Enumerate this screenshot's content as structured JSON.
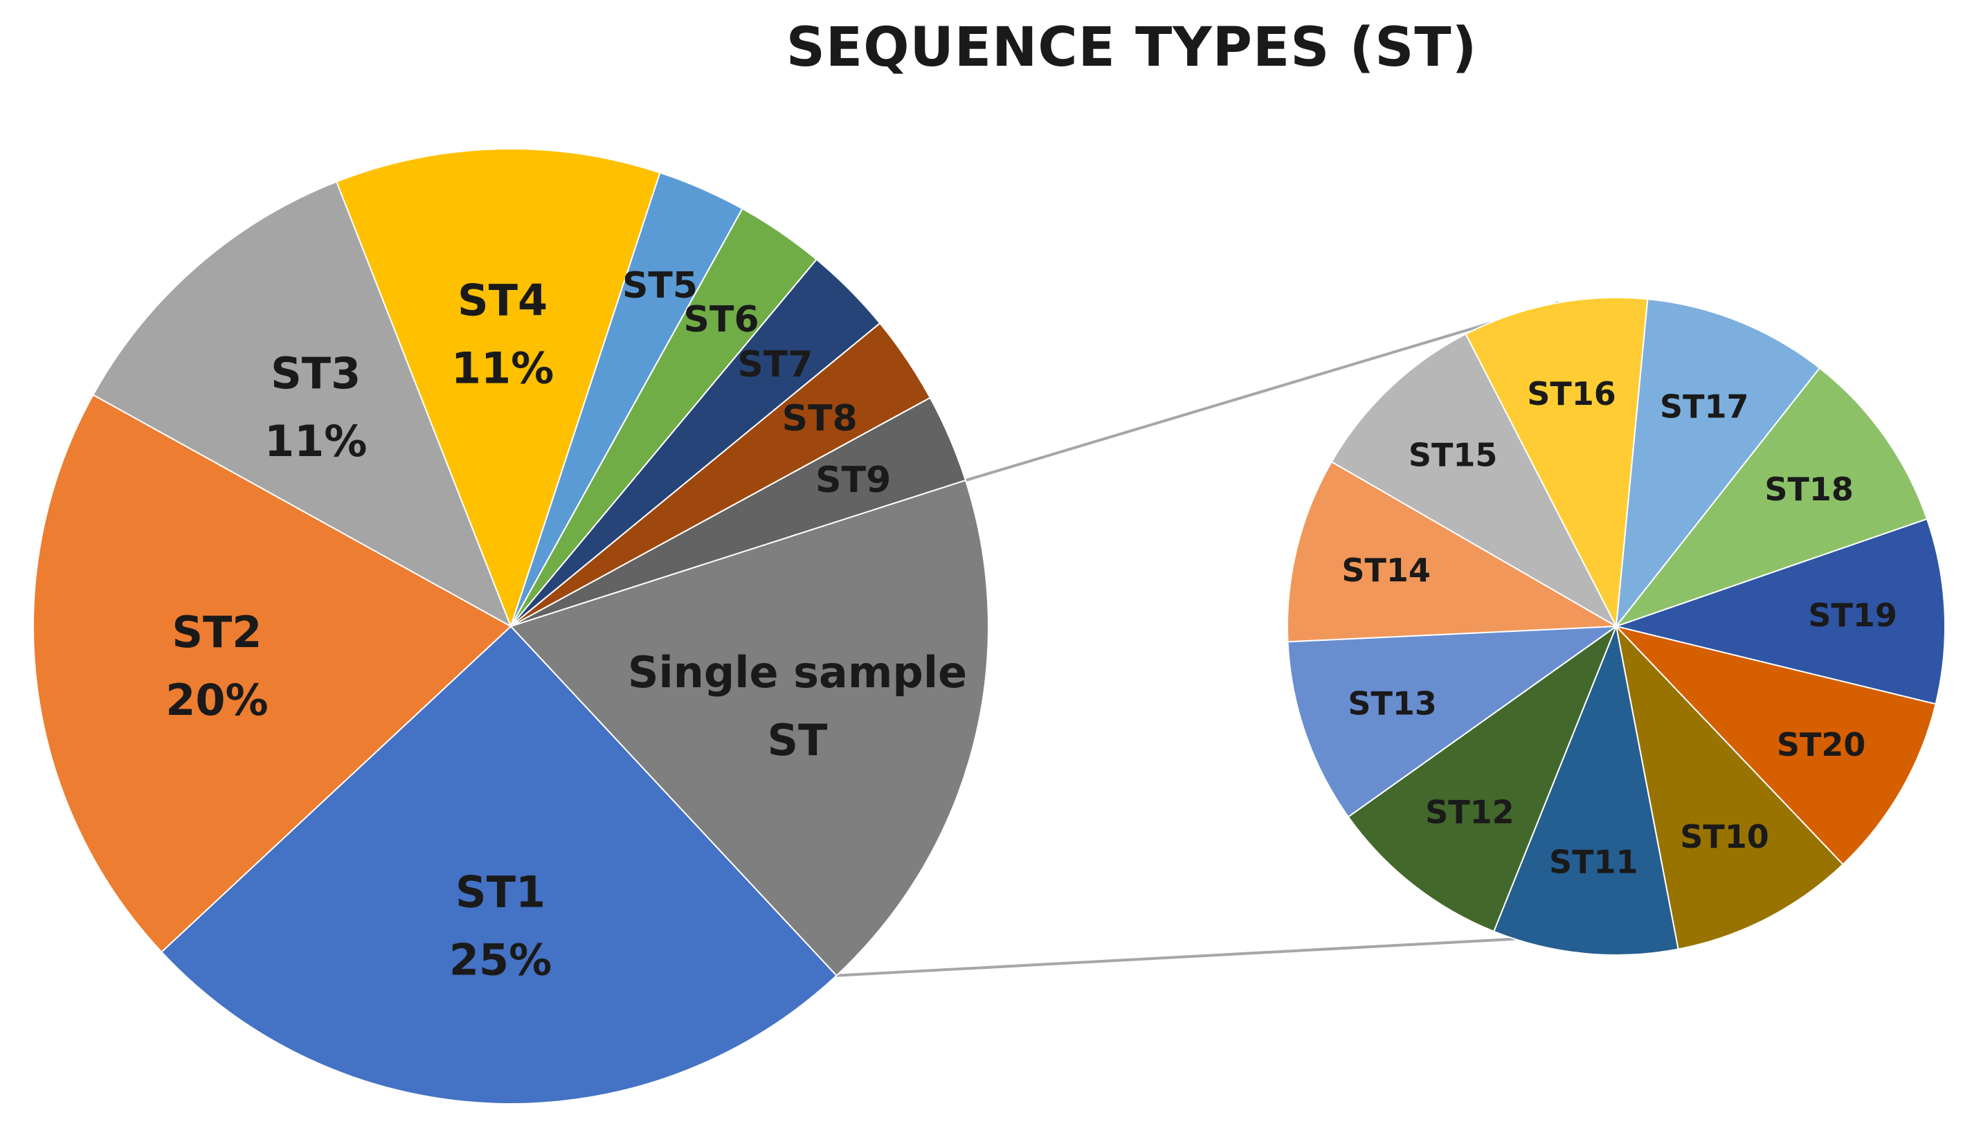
{
  "chart_data": {
    "type": "pie-of-pie",
    "title": "SEQUENCE TYPES (ST)",
    "main_pie": {
      "slices": [
        {
          "name": "ST1",
          "value": 25,
          "label": "25%",
          "color": "#4472C4"
        },
        {
          "name": "ST2",
          "value": 20,
          "label": "20%",
          "color": "#ED7D31"
        },
        {
          "name": "ST3",
          "value": 11,
          "label": "11%",
          "color": "#A5A5A5"
        },
        {
          "name": "ST4",
          "value": 11,
          "label": "11%",
          "color": "#FFC000"
        },
        {
          "name": "ST5",
          "value": 3,
          "color": "#5B9BD5"
        },
        {
          "name": "ST6",
          "value": 3,
          "color": "#70AD47"
        },
        {
          "name": "ST7",
          "value": 3,
          "color": "#264478"
        },
        {
          "name": "ST8",
          "value": 3,
          "color": "#9E480E"
        },
        {
          "name": "ST9",
          "value": 3,
          "color": "#636363"
        },
        {
          "name": "Single sample ST",
          "value": 18,
          "color": "#7F7F7F"
        }
      ]
    },
    "secondary_pie": {
      "parent_slice": "Single sample ST",
      "slices": [
        {
          "name": "ST10",
          "value": 1,
          "color": "#997300"
        },
        {
          "name": "ST11",
          "value": 1,
          "color": "#255E91"
        },
        {
          "name": "ST12",
          "value": 1,
          "color": "#43682B"
        },
        {
          "name": "ST13",
          "value": 1,
          "color": "#698ED0"
        },
        {
          "name": "ST14",
          "value": 1,
          "color": "#F1975A"
        },
        {
          "name": "ST15",
          "value": 1,
          "color": "#B7B7B7"
        },
        {
          "name": "ST16",
          "value": 1,
          "color": "#FFCD33"
        },
        {
          "name": "ST17",
          "value": 1,
          "color": "#7CAFDD"
        },
        {
          "name": "ST18",
          "value": 1,
          "color": "#8CC168"
        },
        {
          "name": "ST19",
          "value": 1,
          "color": "#2F55A4"
        },
        {
          "name": "ST20",
          "value": 1,
          "color": "#D65F00"
        }
      ]
    }
  }
}
